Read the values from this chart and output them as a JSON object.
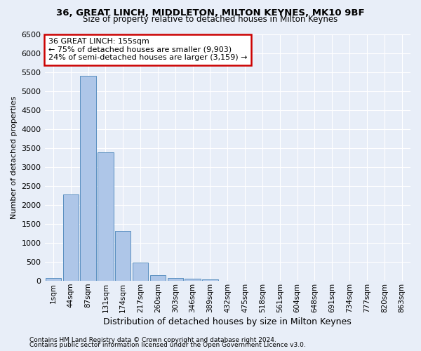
{
  "title1": "36, GREAT LINCH, MIDDLETON, MILTON KEYNES, MK10 9BF",
  "title2": "Size of property relative to detached houses in Milton Keynes",
  "xlabel": "Distribution of detached houses by size in Milton Keynes",
  "ylabel": "Number of detached properties",
  "annotation_line1": "36 GREAT LINCH: 155sqm",
  "annotation_line2": "← 75% of detached houses are smaller (9,903)",
  "annotation_line3": "24% of semi-detached houses are larger (3,159) →",
  "footer1": "Contains HM Land Registry data © Crown copyright and database right 2024.",
  "footer2": "Contains public sector information licensed under the Open Government Licence v3.0.",
  "categories": [
    "1sqm",
    "44sqm",
    "87sqm",
    "131sqm",
    "174sqm",
    "217sqm",
    "260sqm",
    "303sqm",
    "346sqm",
    "389sqm",
    "432sqm",
    "475sqm",
    "518sqm",
    "561sqm",
    "604sqm",
    "648sqm",
    "691sqm",
    "734sqm",
    "777sqm",
    "820sqm",
    "863sqm"
  ],
  "values": [
    75,
    2280,
    5400,
    3390,
    1310,
    480,
    160,
    85,
    60,
    35,
    10,
    5,
    2,
    1,
    0,
    0,
    0,
    0,
    0,
    0,
    0
  ],
  "bar_color": "#aec6e8",
  "bar_edge_color": "#5a8fc0",
  "background_color": "#e8eef8",
  "grid_color": "#ffffff",
  "ylim": [
    0,
    6500
  ],
  "yticks": [
    0,
    500,
    1000,
    1500,
    2000,
    2500,
    3000,
    3500,
    4000,
    4500,
    5000,
    5500,
    6000,
    6500
  ]
}
